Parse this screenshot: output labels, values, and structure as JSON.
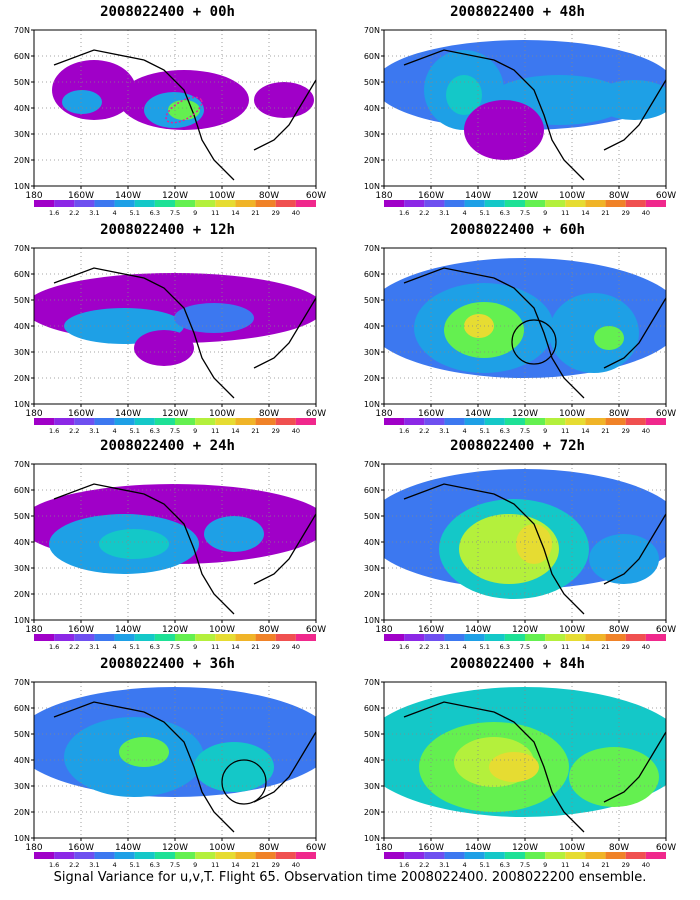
{
  "footer": "Signal Variance for u,v,T. Flight 65. Observation time 2008022400. 2008022200 ensemble.",
  "y_ticks": [
    "70N",
    "60N",
    "50N",
    "40N",
    "30N",
    "20N",
    "10N"
  ],
  "x_ticks": [
    "180",
    "160W",
    "140W",
    "120W",
    "100W",
    "80W",
    "60W"
  ],
  "colorbar": {
    "labels": [
      "1.6",
      "2.2",
      "3.1",
      "4",
      "5.1",
      "6.3",
      "7.5",
      "9",
      "11",
      "14",
      "21",
      "29",
      "40"
    ],
    "colors": [
      "#a000c8",
      "#8c28e6",
      "#6e50f0",
      "#3c78f0",
      "#1ea0e6",
      "#14c8c8",
      "#1ee196",
      "#64f050",
      "#b4f03c",
      "#e6dc32",
      "#f0b428",
      "#f08228",
      "#f05050",
      "#f0288c"
    ]
  },
  "panels": [
    {
      "title": "2008022400 + 00h"
    },
    {
      "title": "2008022400 + 48h"
    },
    {
      "title": "2008022400 + 12h"
    },
    {
      "title": "2008022400 + 60h"
    },
    {
      "title": "2008022400 + 24h"
    },
    {
      "title": "2008022400 + 72h"
    },
    {
      "title": "2008022400 + 36h"
    },
    {
      "title": "2008022400 + 84h"
    }
  ]
}
